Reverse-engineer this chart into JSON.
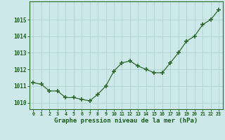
{
  "x": [
    0,
    1,
    2,
    3,
    4,
    5,
    6,
    7,
    8,
    9,
    10,
    11,
    12,
    13,
    14,
    15,
    16,
    17,
    18,
    19,
    20,
    21,
    22,
    23
  ],
  "y": [
    1011.2,
    1011.1,
    1010.7,
    1010.7,
    1010.3,
    1010.3,
    1010.2,
    1010.1,
    1010.5,
    1011.0,
    1011.9,
    1012.4,
    1012.5,
    1012.2,
    1012.0,
    1011.8,
    1011.8,
    1012.4,
    1013.0,
    1013.7,
    1014.0,
    1014.7,
    1015.0,
    1015.6
  ],
  "line_color": "#2d6a2d",
  "marker_color": "#2d6a2d",
  "bg_color": "#cce8e8",
  "grid_color": "#b0d0d0",
  "title": "Graphe pression niveau de la mer (hPa)",
  "yticks": [
    1010,
    1011,
    1012,
    1013,
    1014,
    1015
  ],
  "ylim": [
    1009.6,
    1016.1
  ],
  "xlim": [
    -0.5,
    23.5
  ]
}
